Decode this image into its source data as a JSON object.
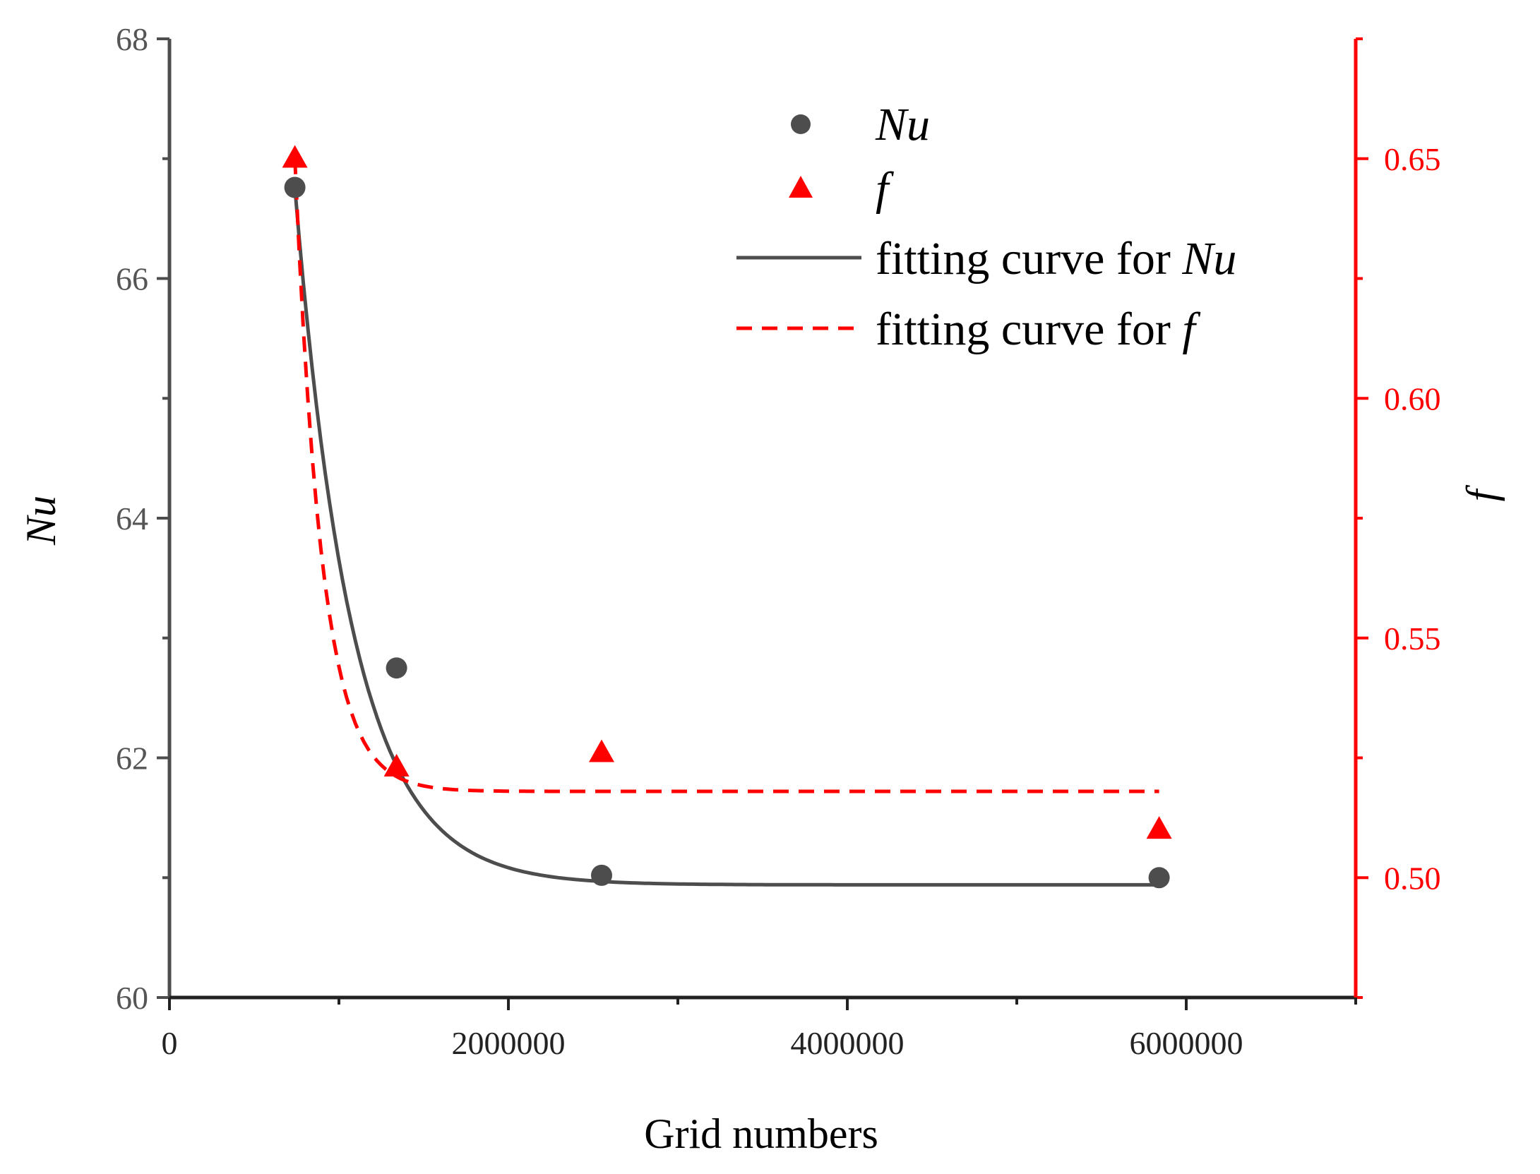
{
  "chart_data": {
    "type": "scatter",
    "xlabel": "Grid numbers",
    "ylabel_left": "Nu",
    "ylabel_right": "f",
    "xlim": [
      0,
      7000000
    ],
    "ylim_left": [
      60,
      68
    ],
    "ylim_right": [
      0.475,
      0.675
    ],
    "x_ticks": [
      0,
      2000000,
      4000000,
      6000000
    ],
    "x_tick_labels": [
      "0",
      "2000000",
      "4000000",
      "6000000"
    ],
    "y_left_ticks": [
      60,
      62,
      64,
      66,
      68
    ],
    "y_left_tick_labels": [
      "60",
      "62",
      "64",
      "66",
      "68"
    ],
    "y_right_ticks": [
      0.5,
      0.55,
      0.6,
      0.65
    ],
    "y_right_tick_labels": [
      "0.50",
      "0.55",
      "0.60",
      "0.65"
    ],
    "series": [
      {
        "name": "Nu",
        "axis": "left",
        "marker": "circle",
        "color": "#4d4d4d",
        "x": [
          740000,
          1340000,
          2550000,
          5840000
        ],
        "y": [
          66.76,
          62.75,
          61.02,
          61.0
        ]
      },
      {
        "name": "f",
        "axis": "right",
        "marker": "triangle",
        "color": "#ff0000",
        "x": [
          740000,
          1340000,
          2550000,
          5840000
        ],
        "y": [
          0.65,
          0.523,
          0.526,
          0.51
        ]
      }
    ],
    "fits": [
      {
        "name": "fitting curve for Nu",
        "axis": "left",
        "style": "solid",
        "color": "#4d4d4d",
        "model": "exp_decay",
        "y0": 60.94,
        "A": 5.82,
        "x0": 740000,
        "t": 340000,
        "x_range": [
          740000,
          5840000
        ]
      },
      {
        "name": "fitting curve for f",
        "axis": "right",
        "style": "dashed",
        "color": "#ff0000",
        "model": "exp_decay",
        "y0": 0.518,
        "A": 0.132,
        "x0": 740000,
        "t": 160000,
        "x_range": [
          740000,
          5840000
        ]
      }
    ],
    "legend": {
      "position": "top-right",
      "entries": [
        {
          "symbol": "circle",
          "label": "Nu"
        },
        {
          "symbol": "triangle",
          "label": "f"
        },
        {
          "symbol": "solid-line",
          "prefix": "fitting curve for ",
          "label": "Nu"
        },
        {
          "symbol": "dashed-line",
          "prefix": "fitting curve for ",
          "label": "f"
        }
      ]
    }
  }
}
